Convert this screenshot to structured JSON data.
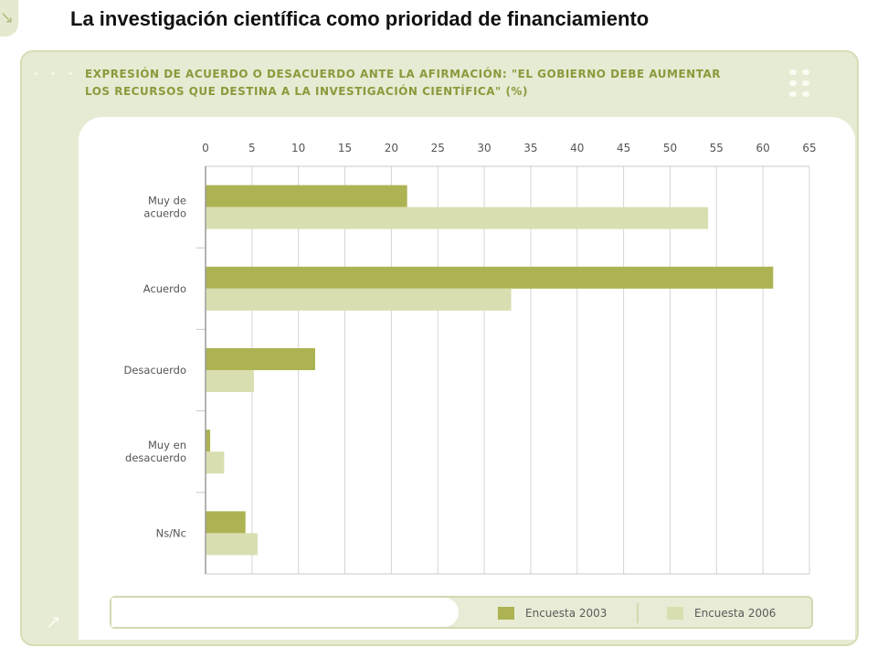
{
  "page": {
    "title": "La investigación científica como prioridad de financiamiento"
  },
  "colors": {
    "series_2003": "#adb352",
    "series_2006": "#d9deb0",
    "heading": "#8a9a3c",
    "panel": "#e6ebd3"
  },
  "icons": {
    "corner": "arrow-down-right-icon",
    "bottom": "arrow-up-right-icon"
  },
  "chart_data": {
    "type": "bar",
    "orientation": "horizontal",
    "title": "EXPRESIÓN DE ACUERDO O DESACUERDO ANTE LA AFIRMACIÓN:  \"EL GOBIERNO DEBE AUMENTAR LOS RECURSOS QUE DESTINA A LA INVESTIGACIÓN CIENTÍFICA\" (%)",
    "categories": [
      [
        "Muy de",
        "acuerdo"
      ],
      [
        "Acuerdo"
      ],
      [
        "Desacuerdo"
      ],
      [
        "Muy en",
        "desacuerdo"
      ],
      [
        "Ns/Nc"
      ]
    ],
    "series": [
      {
        "name": "Encuesta 2003",
        "values": [
          21.7,
          61.1,
          11.8,
          0.5,
          4.3
        ]
      },
      {
        "name": "Encuesta 2006",
        "values": [
          54.1,
          32.9,
          5.2,
          2.0,
          5.6
        ]
      }
    ],
    "xlim": [
      0,
      65
    ],
    "xticks": [
      0,
      5,
      10,
      15,
      20,
      25,
      30,
      35,
      40,
      45,
      50,
      55,
      60,
      65
    ],
    "grid": true,
    "legend": "bottom-right"
  }
}
